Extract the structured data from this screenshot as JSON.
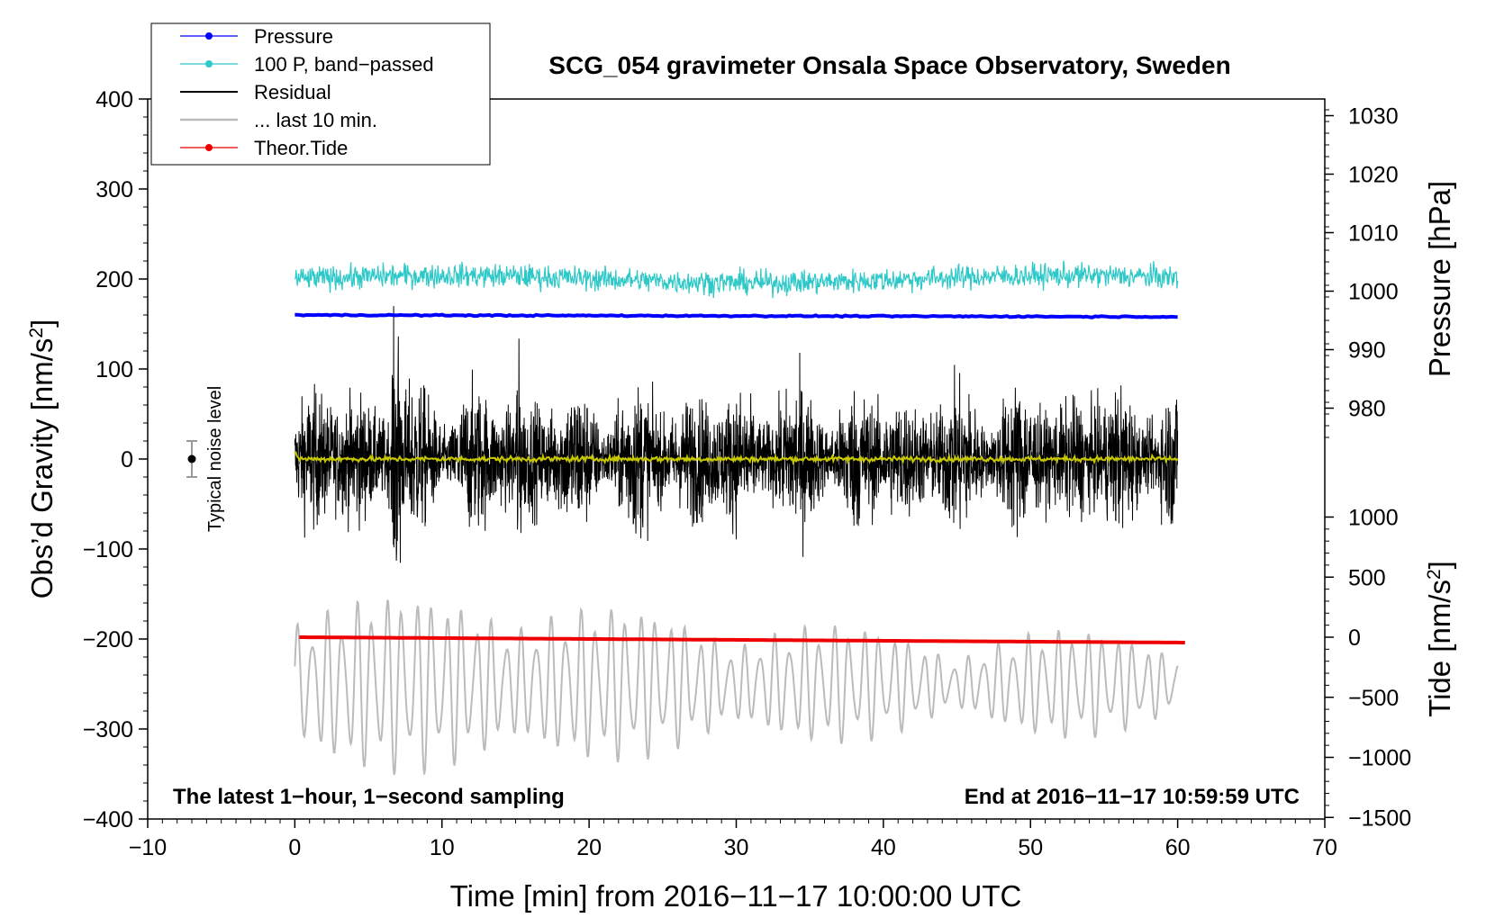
{
  "chart_data": {
    "type": "line",
    "title": "SCG_054 gravimeter Onsala Space Observatory, Sweden",
    "xlabel": "Time [min] from 2016−11−17 10:00:00 UTC",
    "ylabel_left": "Obs’d Gravity [nm/s²]",
    "ylabel_right_pressure": "Pressure [hPa]",
    "ylabel_right_tide": "Tide [nm/s²]",
    "xlim": [
      -10,
      70
    ],
    "ylim_left": [
      -400,
      400
    ],
    "x_ticks": [
      "−10",
      "0",
      "10",
      "20",
      "30",
      "40",
      "50",
      "60",
      "70"
    ],
    "x_tick_values": [
      -10,
      0,
      10,
      20,
      30,
      40,
      50,
      60,
      70
    ],
    "y_ticks_left": [
      "400",
      "300",
      "200",
      "100",
      "0",
      "−100",
      "−200",
      "−300",
      "−400"
    ],
    "y_tick_values_left": [
      400,
      300,
      200,
      100,
      0,
      -100,
      -200,
      -300,
      -400
    ],
    "pressure_ticks": [
      "1030",
      "1020",
      "1010",
      "1000",
      "990",
      "980"
    ],
    "pressure_tick_values": [
      1030,
      1020,
      1010,
      1000,
      990,
      980
    ],
    "pressure_axis": {
      "gravity_at_1000": 186.5,
      "gravity_per_hpa": 6.5
    },
    "tide_ticks": [
      "1000",
      "500",
      "0",
      "−500",
      "−1000",
      "−1500"
    ],
    "tide_tick_values": [
      1000,
      500,
      0,
      -500,
      -1000,
      -1500
    ],
    "tide_axis": {
      "gravity_at_0": -198,
      "gravity_per_unit": 0.1335
    },
    "legend": [
      {
        "label": "Pressure",
        "color": "#0000ff",
        "marker": true
      },
      {
        "label": "100 P, band−passed",
        "color": "#2ec8c8",
        "marker": true
      },
      {
        "label": "Residual",
        "color": "#000000",
        "marker": false
      },
      {
        "label": "... last 10 min.",
        "color": "#bbbbbb",
        "marker": false
      },
      {
        "label": "Theor.Tide",
        "color": "#ee0000",
        "marker": true
      }
    ],
    "annotation_left": "The latest 1−hour, 1−second sampling",
    "annotation_right": "End at 2016−11−17 10:59:59 UTC",
    "noise_label": "Typical noise level",
    "noise_bar": {
      "x": -7,
      "center": 0,
      "halfwidth": 20
    },
    "series": [
      {
        "name": "Pressure",
        "color": "#0000ff",
        "x_range": [
          0,
          60
        ],
        "y_start": 160,
        "y_end": 158,
        "noise": 0.5
      },
      {
        "name": "100 P, band−passed",
        "color": "#2ec8c8",
        "x_range": [
          0,
          60
        ],
        "y_center": 200,
        "amplitude": 17
      },
      {
        "name": "Residual",
        "color": "#000000",
        "x_range": [
          0,
          60
        ],
        "y_center": 0,
        "amplitude": 55,
        "max_abs": 170
      },
      {
        "name": "Residual (smoothed)",
        "color": "#c8c800",
        "x_range": [
          0,
          60
        ],
        "y_center": 0,
        "amplitude": 2
      },
      {
        "name": "... last 10 min.",
        "color": "#bbbbbb",
        "x_range": [
          0,
          60
        ],
        "y_center": -250,
        "amplitude": 75
      },
      {
        "name": "Theor.Tide",
        "color": "#ee0000",
        "x_range": [
          0.3,
          60.5
        ],
        "y_start": -198,
        "y_end": -204
      }
    ]
  }
}
